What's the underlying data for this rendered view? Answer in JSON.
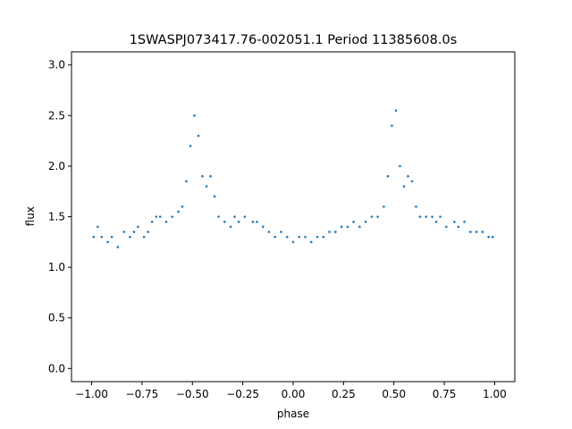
{
  "chart_data": {
    "type": "scatter",
    "title": "1SWASPJ073417.76-002051.1 Period 11385608.0s",
    "xlabel": "phase",
    "ylabel": "flux",
    "xlim": [
      -1.1,
      1.1
    ],
    "ylim": [
      -0.13,
      3.13
    ],
    "x_ticks": [
      -1.0,
      -0.75,
      -0.5,
      -0.25,
      0.0,
      0.25,
      0.5,
      0.75,
      1.0
    ],
    "x_tick_labels": [
      "−1.00",
      "−0.75",
      "−0.50",
      "−0.25",
      "0.00",
      "0.25",
      "0.50",
      "0.75",
      "1.00"
    ],
    "y_ticks": [
      0.0,
      0.5,
      1.0,
      1.5,
      2.0,
      2.5,
      3.0
    ],
    "y_tick_labels": [
      "0.0",
      "0.5",
      "1.0",
      "1.5",
      "2.0",
      "2.5",
      "3.0"
    ],
    "grid": false,
    "marker_color": "#1f77b4",
    "series": [
      {
        "x": [
          -0.99,
          -0.97,
          -0.95,
          -0.92,
          -0.9,
          -0.87,
          -0.84,
          -0.81,
          -0.79,
          -0.77,
          -0.74,
          -0.72,
          -0.7,
          -0.68,
          -0.66,
          -0.63,
          -0.6,
          -0.57,
          -0.55,
          -0.53,
          -0.51,
          -0.49,
          -0.47,
          -0.45,
          -0.43,
          -0.41,
          -0.39,
          -0.37,
          -0.34,
          -0.31,
          -0.29,
          -0.27,
          -0.24,
          -0.2,
          -0.18,
          -0.15,
          -0.12,
          -0.09,
          -0.06,
          -0.03,
          0.0,
          0.03,
          0.06,
          0.09,
          0.12,
          0.15,
          0.18,
          0.21,
          0.24,
          0.27,
          0.3,
          0.33,
          0.36,
          0.39,
          0.42,
          0.45,
          0.47,
          0.49,
          0.51,
          0.53,
          0.55,
          0.57,
          0.59,
          0.61,
          0.63,
          0.66,
          0.69,
          0.71,
          0.73,
          0.76,
          0.8,
          0.82,
          0.85,
          0.88,
          0.91,
          0.94,
          0.97,
          0.99
        ],
        "y": [
          1.3,
          1.4,
          1.3,
          1.25,
          1.3,
          1.2,
          1.35,
          1.3,
          1.35,
          1.4,
          1.3,
          1.35,
          1.45,
          1.5,
          1.5,
          1.45,
          1.5,
          1.55,
          1.6,
          1.85,
          2.2,
          2.5,
          2.3,
          1.9,
          1.8,
          1.9,
          1.7,
          1.5,
          1.45,
          1.4,
          1.5,
          1.45,
          1.5,
          1.45,
          1.45,
          1.4,
          1.35,
          1.3,
          1.35,
          1.3,
          1.25,
          1.3,
          1.3,
          1.25,
          1.3,
          1.3,
          1.35,
          1.35,
          1.4,
          1.4,
          1.45,
          1.4,
          1.45,
          1.5,
          1.5,
          1.6,
          1.9,
          2.4,
          2.55,
          2.0,
          1.8,
          1.9,
          1.85,
          1.6,
          1.5,
          1.5,
          1.5,
          1.45,
          1.5,
          1.4,
          1.45,
          1.4,
          1.45,
          1.35,
          1.35,
          1.35,
          1.3,
          1.3
        ]
      }
    ]
  }
}
